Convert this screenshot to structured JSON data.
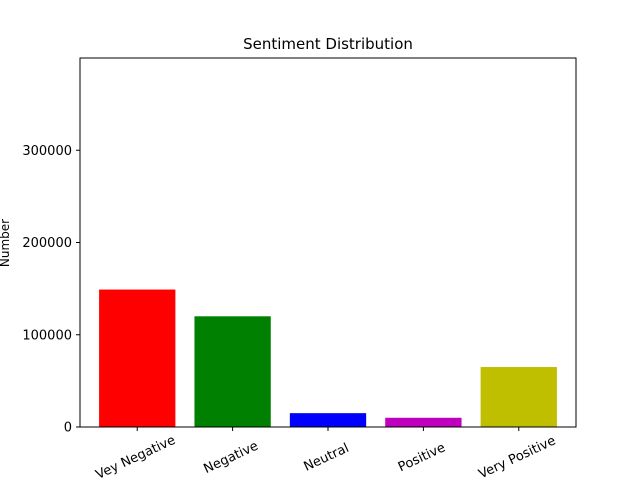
{
  "chart_data": {
    "type": "bar",
    "title": "Sentiment Distribution",
    "xlabel": "",
    "ylabel": "Number",
    "categories": [
      "Vey Negative",
      "Negative",
      "Neutral",
      "Positive",
      "Very Positive"
    ],
    "values": [
      149000,
      120000,
      15000,
      10000,
      65000
    ],
    "colors": [
      "#ff0000",
      "#008000",
      "#0000ff",
      "#bf00bf",
      "#bfbf00"
    ],
    "ylim": [
      0,
      400000
    ],
    "yticks": [
      0,
      100000,
      200000,
      300000
    ],
    "ytick_labels": [
      "0",
      "100000",
      "200000",
      "300000"
    ],
    "xtick_rotation_deg": 25,
    "grid": false,
    "legend": "none"
  }
}
